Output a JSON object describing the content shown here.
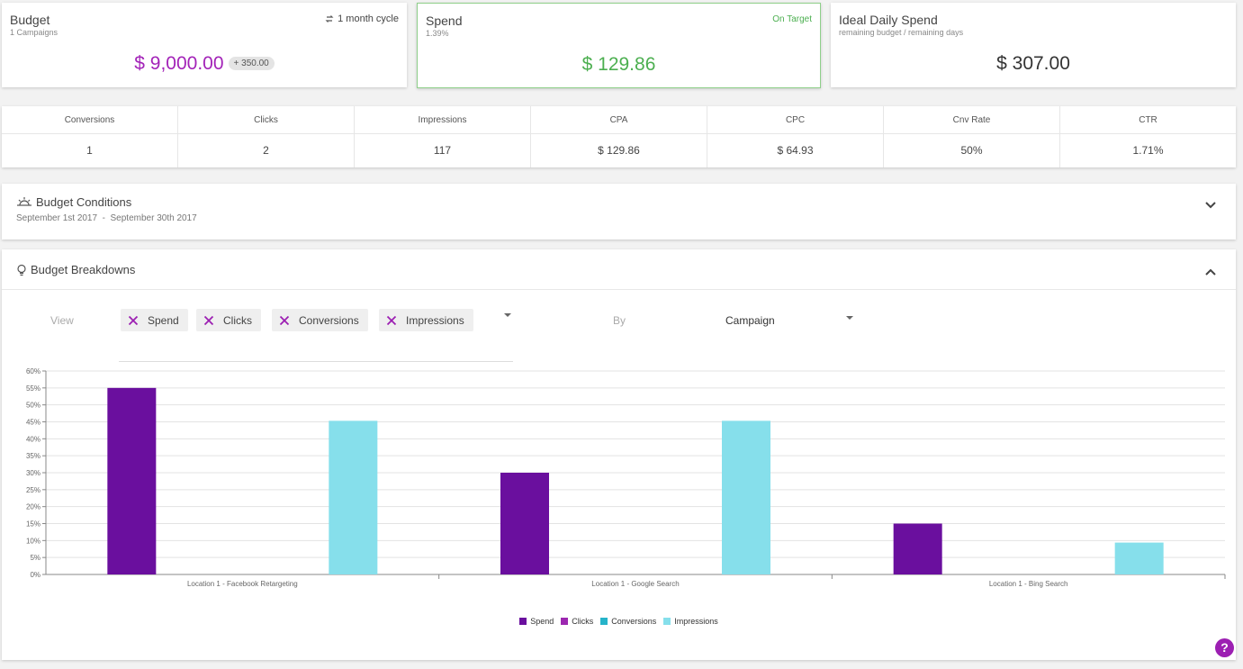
{
  "budget_card": {
    "title": "Budget",
    "subtitle": "1 Campaigns",
    "cycle_label": "1 month cycle",
    "value": "$ 9,000.00",
    "chip": "+ 350.00",
    "icon": "repeat-icon"
  },
  "spend_card": {
    "title": "Spend",
    "subtitle": "1.39%",
    "status": "On Target",
    "value": "$ 129.86",
    "status_color": "#4caf50"
  },
  "ideal_card": {
    "title": "Ideal Daily Spend",
    "subtitle": "remaining budget / remaining days",
    "value": "$ 307.00"
  },
  "stats": {
    "headers": [
      "Conversions",
      "Clicks",
      "Impressions",
      "CPA",
      "CPC",
      "Cnv Rate",
      "CTR"
    ],
    "values": [
      "1",
      "2",
      "117",
      "$ 129.86",
      "$ 64.93",
      "50%",
      "1.71%"
    ]
  },
  "conditions": {
    "title": "Budget Conditions",
    "date_range": "September 1st 2017  -  September 30th 2017",
    "icon": "sun-icon"
  },
  "breakdowns": {
    "title": "Budget Breakdowns",
    "icon": "lightbulb-icon",
    "view_label": "View",
    "view_chips": [
      "Spend",
      "Clicks",
      "Conversions",
      "Impressions"
    ],
    "by_label": "By",
    "by_value": "Campaign"
  },
  "colors": {
    "spend": "#6a0f9e",
    "clicks": "#9c27b0",
    "conversions": "#26b3c9",
    "impressions": "#86dfeb",
    "accent": "#9c1fb2"
  },
  "chart_data": {
    "type": "bar",
    "categories": [
      "Location 1 - Facebook Retargeting",
      "Location 1 - Google Search",
      "Location 1 - Bing Search"
    ],
    "series": [
      {
        "name": "Spend",
        "values": [
          55,
          30,
          15
        ]
      },
      {
        "name": "Clicks",
        "values": [
          0,
          0,
          0
        ]
      },
      {
        "name": "Conversions",
        "values": [
          0,
          0,
          0
        ]
      },
      {
        "name": "Impressions",
        "values": [
          45.3,
          45.3,
          9.4
        ]
      }
    ],
    "yticks": [
      "0%",
      "5%",
      "10%",
      "15%",
      "20%",
      "25%",
      "30%",
      "35%",
      "40%",
      "45%",
      "50%",
      "55%",
      "60%"
    ],
    "ylim": [
      0,
      60
    ],
    "grid": true,
    "legend_position": "bottom-center"
  },
  "help": {
    "label": "?"
  }
}
